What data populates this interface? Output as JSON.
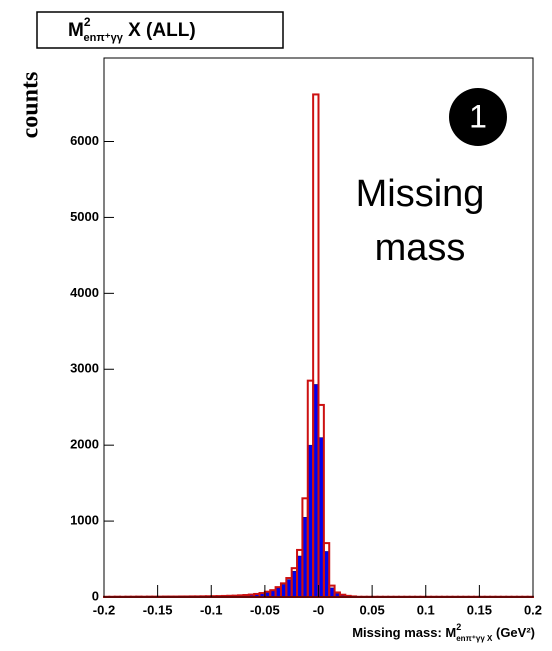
{
  "chart_data": {
    "type": "histogram",
    "title": {
      "base": "M",
      "sup": "2",
      "sub": "enπ⁺γγ",
      "rest": " X (ALL)"
    },
    "x_label": {
      "base": "Missing mass: M",
      "sup": "2",
      "sub": "enπ⁺γγ X",
      "rest": " (GeV²)"
    },
    "y_label": "counts",
    "annotations": {
      "badge": "1",
      "lines": [
        "Missing",
        "mass"
      ]
    },
    "bins": [
      -0.2,
      -0.195,
      -0.19,
      -0.185,
      -0.18,
      -0.175,
      -0.17,
      -0.165,
      -0.16,
      -0.155,
      -0.15,
      -0.145,
      -0.14,
      -0.135,
      -0.13,
      -0.125,
      -0.12,
      -0.115,
      -0.11,
      -0.105,
      -0.1,
      -0.095,
      -0.09,
      -0.085,
      -0.08,
      -0.075,
      -0.07,
      -0.065,
      -0.06,
      -0.055,
      -0.05,
      -0.045,
      -0.04,
      -0.035,
      -0.03,
      -0.025,
      -0.02,
      -0.015,
      -0.01,
      -0.005,
      0,
      0.005,
      0.01,
      0.015,
      0.02,
      0.025,
      0.03,
      0.035,
      0.04,
      0.045,
      0.05,
      0.055,
      0.06,
      0.065,
      0.07,
      0.075,
      0.08,
      0.085,
      0.09,
      0.095,
      0.1,
      0.105,
      0.11,
      0.115,
      0.12,
      0.125,
      0.13,
      0.135,
      0.14,
      0.145,
      0.15,
      0.155,
      0.16,
      0.165,
      0.17,
      0.175,
      0.18,
      0.185,
      0.19,
      0.195,
      0.2
    ],
    "series": [
      {
        "color": "#0000ee",
        "values": [
          2,
          2,
          3,
          2,
          3,
          3,
          4,
          3,
          4,
          4,
          4,
          5,
          5,
          5,
          6,
          6,
          7,
          7,
          8,
          9,
          10,
          11,
          12,
          14,
          16,
          20,
          24,
          29,
          36,
          47,
          63,
          82,
          118,
          165,
          230,
          340,
          540,
          1050,
          2000,
          2800,
          2100,
          600,
          120,
          45,
          22,
          10,
          5,
          2,
          2,
          2,
          2,
          2,
          2,
          2,
          2,
          2,
          2,
          2,
          2,
          2,
          2,
          2,
          2,
          2,
          2,
          2,
          2,
          2,
          2,
          2,
          2,
          2,
          2,
          2,
          2,
          2,
          2,
          2,
          2,
          2
        ]
      },
      {
        "color": "#cc1111",
        "values": [
          3,
          3,
          4,
          3,
          4,
          4,
          5,
          4,
          5,
          5,
          5,
          6,
          6,
          6,
          7,
          7,
          8,
          8,
          9,
          10,
          11,
          12,
          14,
          16,
          18,
          22,
          26,
          32,
          40,
          52,
          70,
          90,
          130,
          180,
          250,
          380,
          620,
          1300,
          2850,
          6620,
          2530,
          710,
          150,
          60,
          30,
          15,
          8,
          3,
          3,
          3,
          3,
          3,
          3,
          3,
          3,
          3,
          3,
          3,
          3,
          3,
          3,
          3,
          3,
          3,
          3,
          3,
          3,
          3,
          3,
          3,
          3,
          3,
          3,
          3,
          3,
          3,
          3,
          3,
          3,
          3
        ]
      }
    ],
    "xlim": [
      -0.2,
      0.2
    ],
    "xticks": [
      -0.2,
      -0.15,
      -0.1,
      -0.05,
      {
        "value": 0,
        "label": "-0"
      },
      0.05,
      0.1,
      0.15,
      0.2
    ],
    "ylim": [
      0,
      7100
    ],
    "yticks": [
      0,
      1000,
      2000,
      3000,
      4000,
      5000,
      6000
    ]
  }
}
